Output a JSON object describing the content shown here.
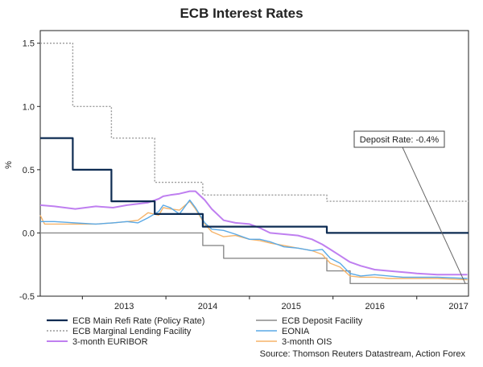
{
  "chart_data": {
    "type": "line",
    "title": "ECB Interest Rates",
    "ylabel": "%",
    "xlabel": "",
    "ylim": [
      -0.5,
      1.6
    ],
    "xlim": [
      "2012-07-01",
      "2017-08-15"
    ],
    "y_ticks": [
      -0.5,
      0.0,
      0.5,
      1.0,
      1.5
    ],
    "y_tick_labels": [
      "-0.5",
      "0.0",
      "0.5",
      "1.0",
      "1.5"
    ],
    "x_tick_labels": [
      {
        "label": "2013",
        "date": "2013-01-01"
      },
      {
        "label": "2014",
        "date": "2014-01-01"
      },
      {
        "label": "2015",
        "date": "2015-01-01"
      },
      {
        "label": "2016",
        "date": "2016-01-01"
      },
      {
        "label": "2017",
        "date": "2017-01-01"
      }
    ],
    "grid": false,
    "legend": "bottom",
    "annotation": {
      "text": "Deposit Rate: -0.4%",
      "x": "2017-08-01",
      "y": -0.4
    },
    "source": "Source: Thomson Reuters Datastream, Action Forex",
    "series": [
      {
        "name": "ECB Main Refi Rate (Policy Rate)",
        "color": "#0d2b52",
        "style": "solid",
        "step": true,
        "points": [
          [
            "2012-07-01",
            0.75
          ],
          [
            "2012-11-20",
            0.75
          ],
          [
            "2012-11-20",
            0.5
          ],
          [
            "2013-05-08",
            0.5
          ],
          [
            "2013-05-08",
            0.25
          ],
          [
            "2013-11-13",
            0.25
          ],
          [
            "2013-11-13",
            0.15
          ],
          [
            "2014-06-11",
            0.15
          ],
          [
            "2014-06-11",
            0.05
          ],
          [
            "2015-12-05",
            0.05
          ],
          [
            "2015-12-05",
            0.0
          ],
          [
            "2017-08-15",
            0.0
          ]
        ]
      },
      {
        "name": "ECB Marginal Lending Facility",
        "color": "#9a9a9a",
        "style": "dotted",
        "step": true,
        "points": [
          [
            "2012-07-01",
            1.5
          ],
          [
            "2012-11-20",
            1.5
          ],
          [
            "2012-11-20",
            1.0
          ],
          [
            "2013-05-08",
            1.0
          ],
          [
            "2013-05-08",
            0.75
          ],
          [
            "2013-11-13",
            0.75
          ],
          [
            "2013-11-13",
            0.4
          ],
          [
            "2014-06-11",
            0.4
          ],
          [
            "2014-06-11",
            0.3
          ],
          [
            "2015-12-05",
            0.3
          ],
          [
            "2015-12-05",
            0.25
          ],
          [
            "2017-08-15",
            0.25
          ]
        ]
      },
      {
        "name": "3-month EURIBOR",
        "color": "#bf7ff0",
        "style": "solid",
        "points": [
          [
            "2012-07-01",
            0.22
          ],
          [
            "2012-09-01",
            0.21
          ],
          [
            "2012-12-01",
            0.19
          ],
          [
            "2013-03-01",
            0.21
          ],
          [
            "2013-05-15",
            0.2
          ],
          [
            "2013-07-15",
            0.22
          ],
          [
            "2013-09-01",
            0.23
          ],
          [
            "2013-10-15",
            0.24
          ],
          [
            "2013-12-01",
            0.27
          ],
          [
            "2013-12-20",
            0.29
          ],
          [
            "2014-01-20",
            0.3
          ],
          [
            "2014-03-01",
            0.31
          ],
          [
            "2014-04-15",
            0.33
          ],
          [
            "2014-05-10",
            0.33
          ],
          [
            "2014-06-20",
            0.26
          ],
          [
            "2014-07-20",
            0.19
          ],
          [
            "2014-09-10",
            0.1
          ],
          [
            "2014-11-01",
            0.08
          ],
          [
            "2015-01-01",
            0.07
          ],
          [
            "2015-02-15",
            0.04
          ],
          [
            "2015-04-01",
            0.0
          ],
          [
            "2015-06-01",
            -0.01
          ],
          [
            "2015-08-01",
            -0.02
          ],
          [
            "2015-10-01",
            -0.05
          ],
          [
            "2015-11-15",
            -0.09
          ],
          [
            "2015-12-20",
            -0.13
          ],
          [
            "2016-02-01",
            -0.18
          ],
          [
            "2016-03-15",
            -0.23
          ],
          [
            "2016-05-01",
            -0.26
          ],
          [
            "2016-07-01",
            -0.29
          ],
          [
            "2016-09-01",
            -0.3
          ],
          [
            "2016-11-01",
            -0.31
          ],
          [
            "2017-01-01",
            -0.32
          ],
          [
            "2017-04-01",
            -0.33
          ],
          [
            "2017-08-10",
            -0.33
          ]
        ]
      },
      {
        "name": "ECB Deposit Facility",
        "color": "#8a8a8a",
        "style": "solid",
        "step": true,
        "points": [
          [
            "2012-07-01",
            0.0
          ],
          [
            "2014-06-11",
            0.0
          ],
          [
            "2014-06-11",
            -0.1
          ],
          [
            "2014-09-10",
            -0.1
          ],
          [
            "2014-09-10",
            -0.2
          ],
          [
            "2015-12-05",
            -0.2
          ],
          [
            "2015-12-05",
            -0.3
          ],
          [
            "2016-03-16",
            -0.3
          ],
          [
            "2016-03-16",
            -0.4
          ],
          [
            "2017-08-15",
            -0.4
          ]
        ]
      },
      {
        "name": "EONIA",
        "color": "#5aa9e6",
        "style": "solid",
        "points": [
          [
            "2012-07-01",
            0.09
          ],
          [
            "2012-09-01",
            0.09
          ],
          [
            "2012-12-01",
            0.08
          ],
          [
            "2013-03-01",
            0.07
          ],
          [
            "2013-05-15",
            0.08
          ],
          [
            "2013-07-15",
            0.09
          ],
          [
            "2013-09-01",
            0.08
          ],
          [
            "2013-10-15",
            0.12
          ],
          [
            "2013-12-01",
            0.17
          ],
          [
            "2013-12-20",
            0.22
          ],
          [
            "2014-01-20",
            0.2
          ],
          [
            "2014-03-01",
            0.15
          ],
          [
            "2014-04-15",
            0.26
          ],
          [
            "2014-05-10",
            0.2
          ],
          [
            "2014-06-20",
            0.08
          ],
          [
            "2014-07-20",
            0.03
          ],
          [
            "2014-09-10",
            0.02
          ],
          [
            "2014-11-01",
            -0.01
          ],
          [
            "2015-01-01",
            -0.05
          ],
          [
            "2015-02-15",
            -0.05
          ],
          [
            "2015-04-01",
            -0.07
          ],
          [
            "2015-06-01",
            -0.11
          ],
          [
            "2015-08-01",
            -0.12
          ],
          [
            "2015-10-01",
            -0.14
          ],
          [
            "2015-11-15",
            -0.13
          ],
          [
            "2015-12-20",
            -0.2
          ],
          [
            "2016-02-01",
            -0.24
          ],
          [
            "2016-03-15",
            -0.32
          ],
          [
            "2016-05-01",
            -0.34
          ],
          [
            "2016-07-01",
            -0.33
          ],
          [
            "2016-09-01",
            -0.34
          ],
          [
            "2016-11-01",
            -0.35
          ],
          [
            "2017-01-01",
            -0.35
          ],
          [
            "2017-04-01",
            -0.35
          ],
          [
            "2017-08-10",
            -0.36
          ]
        ]
      },
      {
        "name": "3-month OIS",
        "color": "#f5b46a",
        "style": "solid",
        "points": [
          [
            "2012-07-01",
            0.14
          ],
          [
            "2012-07-20",
            0.07
          ],
          [
            "2012-09-01",
            0.07
          ],
          [
            "2012-12-01",
            0.07
          ],
          [
            "2013-03-01",
            0.07
          ],
          [
            "2013-05-15",
            0.08
          ],
          [
            "2013-07-15",
            0.09
          ],
          [
            "2013-09-01",
            0.1
          ],
          [
            "2013-10-15",
            0.16
          ],
          [
            "2013-12-01",
            0.14
          ],
          [
            "2013-12-20",
            0.2
          ],
          [
            "2014-01-20",
            0.19
          ],
          [
            "2014-03-01",
            0.18
          ],
          [
            "2014-04-15",
            0.25
          ],
          [
            "2014-05-10",
            0.19
          ],
          [
            "2014-06-20",
            0.07
          ],
          [
            "2014-07-20",
            0.01
          ],
          [
            "2014-09-10",
            -0.03
          ],
          [
            "2014-11-01",
            -0.02
          ],
          [
            "2015-01-01",
            -0.05
          ],
          [
            "2015-02-15",
            -0.06
          ],
          [
            "2015-04-01",
            -0.08
          ],
          [
            "2015-06-01",
            -0.1
          ],
          [
            "2015-08-01",
            -0.12
          ],
          [
            "2015-10-01",
            -0.14
          ],
          [
            "2015-11-15",
            -0.17
          ],
          [
            "2015-12-20",
            -0.24
          ],
          [
            "2016-02-01",
            -0.27
          ],
          [
            "2016-03-15",
            -0.34
          ],
          [
            "2016-05-01",
            -0.35
          ],
          [
            "2016-07-01",
            -0.35
          ],
          [
            "2016-09-01",
            -0.36
          ],
          [
            "2016-11-01",
            -0.36
          ],
          [
            "2017-01-01",
            -0.36
          ],
          [
            "2017-04-01",
            -0.36
          ],
          [
            "2017-08-10",
            -0.37
          ]
        ]
      }
    ]
  }
}
